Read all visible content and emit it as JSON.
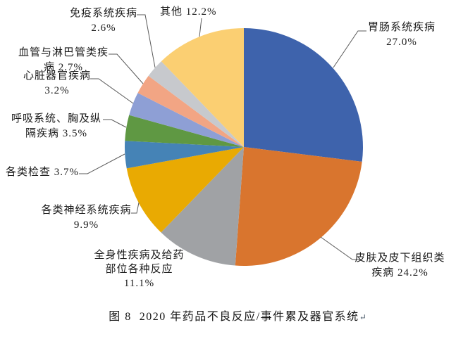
{
  "figure": {
    "caption": "图 8  2020 年药品不良反应/事件累及器官系统",
    "paragraph_mark": "↵"
  },
  "chart_data": {
    "type": "pie",
    "title": "图 8 2020 年药品不良反应/事件累及器官系统",
    "unit": "%",
    "start_angle_deg": 0,
    "direction": "clockwise",
    "legend": "none",
    "background": "#ffffff",
    "leader_line_color": "#5a5a5a",
    "slices": [
      {
        "name": "gastrointestinal",
        "label": "胃肠系统疾病",
        "value": 27.0,
        "display": "27.0%",
        "color": "#3e63ac",
        "lines": [
          "胃肠系统疾病",
          "27.0%"
        ]
      },
      {
        "name": "skin-subcutaneous",
        "label": "皮肤及皮下组织类疾病",
        "value": 24.2,
        "display": "24.2%",
        "color": "#d9752e",
        "lines": [
          "皮肤及皮下组织类",
          "疾病 24.2%"
        ]
      },
      {
        "name": "general-admin-site",
        "label": "全身性疾病及给药部位各种反应",
        "value": 11.1,
        "display": "11.1%",
        "color": "#a0a2a5",
        "lines": [
          "全身性疾病及给药",
          "部位各种反应",
          "11.1%"
        ]
      },
      {
        "name": "nervous-system",
        "label": "各类神经系统疾病",
        "value": 9.9,
        "display": "9.9%",
        "color": "#e9aa02",
        "lines": [
          "各类神经系统疾病",
          "9.9%"
        ]
      },
      {
        "name": "investigations",
        "label": "各类检查",
        "value": 3.7,
        "display": "3.7%",
        "color": "#4583b6",
        "lines": [
          "各类检查 3.7%"
        ]
      },
      {
        "name": "respiratory-thoracic",
        "label": "呼吸系统、胸及纵隔疾病",
        "value": 3.5,
        "display": "3.5%",
        "color": "#5f9843",
        "lines": [
          "呼吸系统、胸及纵",
          "隔疾病 3.5%"
        ]
      },
      {
        "name": "cardiac",
        "label": "心脏器官疾病",
        "value": 3.2,
        "display": "3.2%",
        "color": "#8e9fd5",
        "lines": [
          "心脏器官疾病",
          "3.2%"
        ]
      },
      {
        "name": "vascular-lymphatic",
        "label": "血管与淋巴管类疾病",
        "value": 2.7,
        "display": "2.7%",
        "color": "#f2a584",
        "lines": [
          "血管与淋巴管类疾",
          "病 2.7%"
        ]
      },
      {
        "name": "immune",
        "label": "免疫系统疾病",
        "value": 2.6,
        "display": "2.6%",
        "color": "#c7c9cd",
        "lines": [
          "免疫系统疾病",
          "2.6%"
        ]
      },
      {
        "name": "other",
        "label": "其他",
        "value": 12.2,
        "display": "12.2%",
        "color": "#fbcf72",
        "lines": [
          "其他 12.2%"
        ]
      }
    ]
  }
}
